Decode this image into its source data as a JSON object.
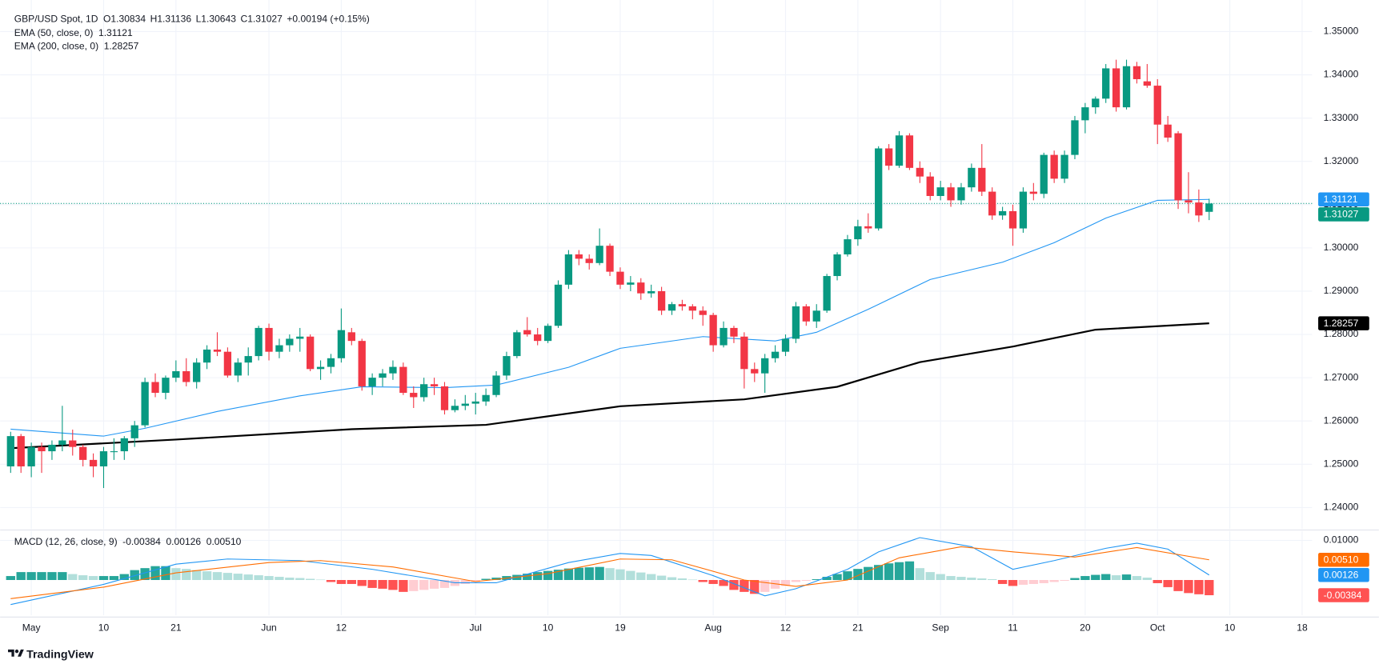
{
  "chart_data": {
    "type": "candlestick",
    "title": "GBP/USD Spot, 1D",
    "header_labels": [
      "O",
      "H",
      "L",
      "C"
    ],
    "change": "+0.00194 (+0.15%)",
    "up_color": "#089981",
    "down_color": "#f23645",
    "grid": true,
    "x": [
      0,
      1,
      2,
      3,
      4,
      5,
      6,
      7,
      8,
      9,
      10,
      11,
      12,
      13,
      14,
      15,
      16,
      17,
      18,
      19,
      20,
      21,
      22,
      23,
      24,
      25,
      26,
      27,
      28,
      29,
      30,
      31,
      32,
      33,
      34,
      35,
      36,
      37,
      38,
      39,
      40,
      41,
      42,
      43,
      44,
      45,
      46,
      47,
      48,
      49,
      50,
      51,
      52,
      53,
      54,
      55,
      56,
      57,
      58,
      59,
      60,
      61,
      62,
      63,
      64,
      65,
      66,
      67,
      68,
      69,
      70,
      71,
      72,
      73,
      74,
      75,
      76,
      77,
      78,
      79,
      80,
      81,
      82,
      83,
      84,
      85,
      86,
      87,
      88,
      89,
      90,
      91,
      92,
      93,
      94,
      95,
      96,
      97,
      98,
      99,
      100,
      101,
      102,
      103,
      104,
      105,
      106,
      107,
      108,
      109,
      110,
      111,
      112,
      113,
      114,
      115,
      116
    ],
    "open": [
      1.2495,
      1.2565,
      1.2495,
      1.254,
      1.253,
      1.2545,
      1.2555,
      1.254,
      1.251,
      1.2495,
      1.253,
      1.253,
      1.256,
      1.259,
      1.269,
      1.2665,
      1.27,
      1.2715,
      1.269,
      1.2735,
      1.2765,
      1.276,
      1.2705,
      1.2735,
      1.275,
      1.2815,
      1.276,
      1.2775,
      1.279,
      1.2795,
      1.272,
      1.2725,
      1.2745,
      1.2805,
      1.2785,
      1.268,
      1.27,
      1.271,
      1.2725,
      1.2665,
      1.2655,
      1.2685,
      1.268,
      1.2625,
      1.2635,
      1.264,
      1.2645,
      1.266,
      1.2705,
      1.275,
      1.281,
      1.28,
      1.2785,
      1.282,
      1.2915,
      1.2985,
      1.2975,
      1.2965,
      1.3005,
      1.2945,
      1.2915,
      1.292,
      1.2895,
      1.29,
      1.2855,
      1.287,
      1.2865,
      1.2855,
      1.2845,
      1.2775,
      1.2815,
      1.2795,
      1.272,
      1.271,
      1.2745,
      1.276,
      1.279,
      1.2865,
      1.283,
      1.2855,
      1.2935,
      1.2985,
      1.302,
      1.305,
      1.3045,
      1.323,
      1.319,
      1.326,
      1.3185,
      1.3165,
      1.312,
      1.314,
      1.311,
      1.314,
      1.3185,
      1.313,
      1.3075,
      1.3085,
      1.3045,
      1.313,
      1.3125,
      1.3215,
      1.316,
      1.3215,
      1.3295,
      1.3325,
      1.3345,
      1.3415,
      1.3325,
      1.342,
      1.3385,
      1.3375,
      1.3285,
      1.3265,
      1.311,
      1.3105,
      1.30834
    ],
    "high": [
      1.2575,
      1.257,
      1.255,
      1.255,
      1.2555,
      1.2635,
      1.258,
      1.2545,
      1.2525,
      1.254,
      1.256,
      1.2565,
      1.26,
      1.27,
      1.271,
      1.2705,
      1.274,
      1.2745,
      1.2745,
      1.2775,
      1.2805,
      1.277,
      1.2745,
      1.277,
      1.282,
      1.2825,
      1.279,
      1.28,
      1.2815,
      1.28,
      1.274,
      1.2755,
      1.286,
      1.2815,
      1.279,
      1.271,
      1.272,
      1.274,
      1.2735,
      1.268,
      1.27,
      1.27,
      1.269,
      1.265,
      1.266,
      1.2665,
      1.2675,
      1.2715,
      1.276,
      1.281,
      1.284,
      1.2815,
      1.2825,
      1.2925,
      1.2995,
      1.2995,
      1.2985,
      1.3045,
      1.301,
      1.2955,
      1.2935,
      1.293,
      1.2915,
      1.291,
      1.2875,
      1.288,
      1.287,
      1.2865,
      1.285,
      1.283,
      1.282,
      1.2805,
      1.2735,
      1.2755,
      1.2775,
      1.28,
      1.2875,
      1.287,
      1.287,
      1.294,
      1.299,
      1.303,
      1.3065,
      1.308,
      1.3235,
      1.324,
      1.327,
      1.3265,
      1.32,
      1.3175,
      1.3155,
      1.315,
      1.315,
      1.3195,
      1.324,
      1.314,
      1.3095,
      1.31,
      1.314,
      1.315,
      1.322,
      1.3225,
      1.3225,
      1.3305,
      1.3335,
      1.335,
      1.3425,
      1.3435,
      1.3435,
      1.343,
      1.3425,
      1.339,
      1.3305,
      1.327,
      1.3175,
      1.3135,
      1.31136
    ],
    "low": [
      1.248,
      1.248,
      1.247,
      1.248,
      1.251,
      1.253,
      1.252,
      1.2495,
      1.247,
      1.2445,
      1.251,
      1.251,
      1.254,
      1.2585,
      1.2655,
      1.265,
      1.269,
      1.268,
      1.2675,
      1.272,
      1.275,
      1.27,
      1.269,
      1.2705,
      1.274,
      1.274,
      1.2745,
      1.276,
      1.276,
      1.2715,
      1.2695,
      1.271,
      1.2735,
      1.2775,
      1.267,
      1.266,
      1.268,
      1.2695,
      1.266,
      1.263,
      1.2645,
      1.266,
      1.2615,
      1.262,
      1.2625,
      1.2615,
      1.2635,
      1.2655,
      1.2695,
      1.2745,
      1.2795,
      1.2775,
      1.278,
      1.2815,
      1.2905,
      1.296,
      1.295,
      1.296,
      1.2935,
      1.2905,
      1.29,
      1.288,
      1.2885,
      1.2845,
      1.2845,
      1.2855,
      1.2835,
      1.282,
      1.276,
      1.277,
      1.278,
      1.2675,
      1.269,
      1.2665,
      1.2735,
      1.275,
      1.278,
      1.282,
      1.2815,
      1.285,
      1.2925,
      1.298,
      1.3005,
      1.3035,
      1.304,
      1.318,
      1.3185,
      1.318,
      1.315,
      1.311,
      1.311,
      1.3095,
      1.31,
      1.313,
      1.312,
      1.3065,
      1.3065,
      1.3005,
      1.3035,
      1.311,
      1.3115,
      1.315,
      1.315,
      1.3205,
      1.3265,
      1.331,
      1.3335,
      1.3315,
      1.332,
      1.338,
      1.337,
      1.324,
      1.3245,
      1.309,
      1.308,
      1.306,
      1.30643
    ],
    "close": [
      1.2565,
      1.2495,
      1.254,
      1.253,
      1.2545,
      1.2555,
      1.254,
      1.251,
      1.2495,
      1.253,
      1.253,
      1.256,
      1.259,
      1.269,
      1.2665,
      1.27,
      1.2715,
      1.269,
      1.2735,
      1.2765,
      1.276,
      1.2705,
      1.2735,
      1.275,
      1.2815,
      1.276,
      1.2775,
      1.279,
      1.2795,
      1.272,
      1.2725,
      1.2745,
      1.281,
      1.2785,
      1.268,
      1.27,
      1.271,
      1.2725,
      1.2665,
      1.2655,
      1.2685,
      1.268,
      1.2625,
      1.2635,
      1.264,
      1.2645,
      1.266,
      1.2705,
      1.275,
      1.2805,
      1.28,
      1.2785,
      1.282,
      1.2915,
      1.2985,
      1.2975,
      1.2965,
      1.3005,
      1.2945,
      1.2915,
      1.292,
      1.2895,
      1.29,
      1.2855,
      1.287,
      1.2865,
      1.2855,
      1.2845,
      1.2775,
      1.2815,
      1.2795,
      1.272,
      1.271,
      1.2745,
      1.276,
      1.279,
      1.2865,
      1.283,
      1.2855,
      1.2935,
      1.2985,
      1.302,
      1.305,
      1.3045,
      1.323,
      1.319,
      1.326,
      1.3185,
      1.3165,
      1.312,
      1.314,
      1.311,
      1.314,
      1.3185,
      1.313,
      1.3075,
      1.3085,
      1.3045,
      1.313,
      1.3125,
      1.3215,
      1.316,
      1.3215,
      1.3295,
      1.3325,
      1.3345,
      1.3415,
      1.3325,
      1.342,
      1.339,
      1.3375,
      1.3285,
      1.3255,
      1.311,
      1.3105,
      1.3075,
      1.31027
    ],
    "overlays": [
      {
        "name": "EMA (50, close, 0)",
        "color": "#2196f3",
        "x": [
          0,
          9,
          13,
          20,
          28,
          34,
          42,
          47,
          54,
          59,
          67,
          74,
          78,
          83,
          89,
          96,
          101,
          106,
          111,
          116
        ],
        "values": [
          1.2581,
          1.2565,
          1.2583,
          1.2622,
          1.2658,
          1.2679,
          1.2677,
          1.2683,
          1.2724,
          1.2768,
          1.2795,
          1.2785,
          1.2805,
          1.2858,
          1.2927,
          1.2967,
          1.3012,
          1.3069,
          1.311,
          1.31121
        ]
      },
      {
        "name": "EMA (200, close, 0)",
        "color": "#000000",
        "x": [
          0,
          16,
          33,
          46,
          59,
          71,
          80,
          88,
          97,
          105,
          116
        ],
        "values": [
          1.2537,
          1.2557,
          1.2581,
          1.2591,
          1.2634,
          1.265,
          1.2679,
          1.2736,
          1.2772,
          1.2811,
          1.28257
        ]
      }
    ],
    "xlim": [
      -1.02,
      125.96
    ],
    "xticks": [
      {
        "value": 2,
        "label": "May"
      },
      {
        "value": 9,
        "label": "10"
      },
      {
        "value": 16,
        "label": "21"
      },
      {
        "value": 25,
        "label": "Jun"
      },
      {
        "value": 32,
        "label": "12"
      },
      {
        "value": 45,
        "label": "Jul"
      },
      {
        "value": 52,
        "label": "10"
      },
      {
        "value": 59,
        "label": "19"
      },
      {
        "value": 68,
        "label": "Aug"
      },
      {
        "value": 75,
        "label": "12"
      },
      {
        "value": 82,
        "label": "21"
      },
      {
        "value": 90,
        "label": "Sep"
      },
      {
        "value": 97,
        "label": "11"
      },
      {
        "value": 104,
        "label": "20"
      },
      {
        "value": 111,
        "label": "Oct"
      },
      {
        "value": 118,
        "label": "10"
      },
      {
        "value": 125,
        "label": "18"
      }
    ],
    "ylim": [
      1.235,
      1.3573
    ],
    "yticks": [
      {
        "value": 1.24,
        "label": "1.24000"
      },
      {
        "value": 1.25,
        "label": "1.25000"
      },
      {
        "value": 1.26,
        "label": "1.26000"
      },
      {
        "value": 1.27,
        "label": "1.27000"
      },
      {
        "value": 1.28,
        "label": "1.28000"
      },
      {
        "value": 1.29,
        "label": "1.29000"
      },
      {
        "value": 1.3,
        "label": "1.30000"
      },
      {
        "value": 1.31,
        "label": "1.31000"
      },
      {
        "value": 1.32,
        "label": "1.32000"
      },
      {
        "value": 1.33,
        "label": "1.33000"
      },
      {
        "value": 1.34,
        "label": "1.34000"
      },
      {
        "value": 1.35,
        "label": "1.35000"
      }
    ],
    "macd": {
      "type": "macd",
      "title": "MACD (12, 26, close, 9)",
      "legend_values": [
        "-0.00384",
        "0.00126",
        "0.00510"
      ],
      "ylim": [
        -0.0089,
        0.0124
      ],
      "yticks": [
        {
          "value": 0.01,
          "label": "0.01000"
        }
      ],
      "histogram": {
        "colors": {
          "up_strong": "#26a69a",
          "up_weak": "#b2dfdb",
          "down_strong": "#ff5252",
          "down_weak": "#ffcdd2"
        },
        "values": [
          0.001,
          0.002,
          0.002,
          0.002,
          0.002,
          0.002,
          0.0015,
          0.0012,
          0.001,
          0.001,
          0.001,
          0.0015,
          0.0025,
          0.003,
          0.0035,
          0.0035,
          0.003,
          0.0028,
          0.0025,
          0.0022,
          0.002,
          0.0018,
          0.0016,
          0.0014,
          0.0012,
          0.001,
          0.0008,
          0.0006,
          0.0005,
          0.0003,
          0.0001,
          -0.0005,
          -0.001,
          -0.001,
          -0.0015,
          -0.002,
          -0.0022,
          -0.0025,
          -0.003,
          -0.0028,
          -0.0025,
          -0.0022,
          -0.002,
          -0.0015,
          -0.001,
          -0.0005,
          0.0003,
          0.0006,
          0.001,
          0.0013,
          0.0016,
          0.002,
          0.0023,
          0.0026,
          0.0029,
          0.0031,
          0.0032,
          0.0033,
          0.003,
          0.0027,
          0.0023,
          0.0019,
          0.0015,
          0.0011,
          0.0007,
          0.0004,
          0.0001,
          -0.0005,
          -0.001,
          -0.0015,
          -0.0025,
          -0.003,
          -0.0035,
          -0.003,
          -0.0022,
          -0.0015,
          -0.0005,
          -0.0002,
          0.0002,
          0.0008,
          0.0015,
          0.0022,
          0.0028,
          0.0033,
          0.0038,
          0.0042,
          0.0045,
          0.0047,
          0.003,
          0.002,
          0.0015,
          0.001,
          0.0008,
          0.0006,
          0.0004,
          0.0002,
          -0.001,
          -0.0015,
          -0.0012,
          -0.001,
          -0.0008,
          -0.0005,
          -0.0002,
          0.0005,
          0.001,
          0.0013,
          0.0015,
          0.0012,
          0.0014,
          0.001,
          0.0006,
          -0.0008,
          -0.0018,
          -0.0028,
          -0.0033,
          -0.0036,
          -0.00384
        ]
      },
      "series": [
        {
          "color": "#2196f3",
          "x": [
            0,
            9,
            16,
            21,
            28,
            35,
            43,
            47,
            54,
            59,
            62,
            68,
            73,
            76,
            81,
            84,
            88,
            93,
            97,
            101,
            106,
            109,
            112,
            116
          ],
          "values": [
            -0.0062,
            -0.0011,
            0.004,
            0.0053,
            0.0049,
            0.0027,
            -0.0007,
            -0.0007,
            0.0044,
            0.0067,
            0.0062,
            0.0011,
            -0.004,
            -0.0022,
            0.0027,
            0.0071,
            0.0107,
            0.0084,
            0.0027,
            0.0049,
            0.008,
            0.0093,
            0.0078,
            0.00126
          ]
        },
        {
          "color": "#ff6d00",
          "x": [
            0,
            9,
            16,
            25,
            30,
            37,
            45,
            52,
            59,
            64,
            71,
            76,
            81,
            86,
            92,
            97,
            103,
            109,
            116
          ],
          "values": [
            -0.0047,
            -0.0018,
            0.0018,
            0.0044,
            0.0049,
            0.0033,
            -0.0004,
            0.0016,
            0.0053,
            0.0051,
            0,
            -0.0016,
            0,
            0.0056,
            0.0084,
            0.0071,
            0.0058,
            0.0082,
            0.0051
          ]
        }
      ]
    }
  },
  "footer": {
    "brand": "TradingView"
  }
}
